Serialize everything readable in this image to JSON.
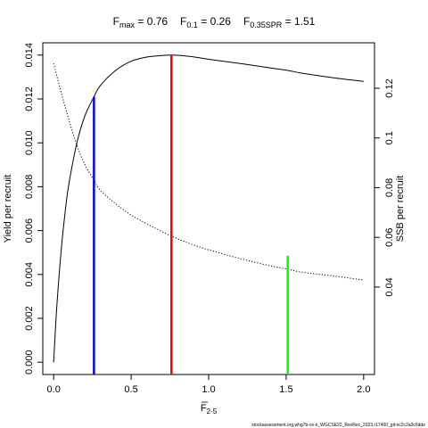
{
  "title": {
    "fmax": {
      "name": "F",
      "sub": "max",
      "text": " = 0.76"
    },
    "f01": {
      "name": "F",
      "sub": "0.1",
      "text": " = 0.26"
    },
    "f35": {
      "name": "F",
      "sub": "0.35SPR",
      "text": " = 1.51"
    }
  },
  "footer": "stockassessment.org,whg7b-ce-k_WGCSE22_RevRec_2023,r17400_git:ec2c2a0c6dde",
  "chart_data": {
    "type": "line",
    "xlabel": {
      "main": "F",
      "sub": "2-5"
    },
    "ylabel_left": "Yield per recruit",
    "ylabel_right": "SSB per recruit",
    "xlim": [
      -0.07,
      2.07
    ],
    "ylim_left": [
      -0.00056,
      0.01456
    ],
    "ylim_right": [
      0.0048,
      0.1383
    ],
    "x_ticks": [
      "0.0",
      "0.5",
      "1.0",
      "1.5",
      "2.0"
    ],
    "y_left_ticks": [
      "0.000",
      "0.002",
      "0.004",
      "0.006",
      "0.008",
      "0.010",
      "0.012",
      "0.014"
    ],
    "y_right_ticks": [
      "0.04",
      "0.06",
      "0.08",
      "0.1",
      "0.12"
    ],
    "series": [
      {
        "axis": "left",
        "style": "solid",
        "color": "#000000",
        "x": [
          0.0,
          0.02,
          0.05,
          0.08,
          0.1,
          0.15,
          0.2,
          0.26,
          0.3,
          0.4,
          0.5,
          0.6,
          0.7,
          0.76,
          0.8,
          0.9,
          1.0,
          1.2,
          1.4,
          1.51,
          1.6,
          1.8,
          2.0
        ],
        "values": [
          0.0,
          0.0025,
          0.0052,
          0.0072,
          0.0082,
          0.01,
          0.0112,
          0.0121,
          0.0126,
          0.0133,
          0.01372,
          0.01391,
          0.01398,
          0.014,
          0.01399,
          0.01392,
          0.01381,
          0.01362,
          0.01341,
          0.0133,
          0.01318,
          0.01297,
          0.0128
        ]
      },
      {
        "axis": "right",
        "style": "dotted",
        "color": "#000000",
        "x": [
          0.0,
          0.05,
          0.1,
          0.15,
          0.2,
          0.26,
          0.3,
          0.4,
          0.5,
          0.6,
          0.76,
          0.9,
          1.0,
          1.2,
          1.4,
          1.51,
          1.6,
          1.8,
          2.0
        ],
        "values": [
          0.13,
          0.118,
          0.107,
          0.097,
          0.0895,
          0.083,
          0.079,
          0.0735,
          0.069,
          0.0655,
          0.0605,
          0.057,
          0.055,
          0.0515,
          0.0485,
          0.0472,
          0.046,
          0.0445,
          0.0428
        ]
      }
    ],
    "reference_lines": [
      {
        "x": 0.26,
        "y_top": 0.0121,
        "color": "#0000ff"
      },
      {
        "x": 0.76,
        "y_top": 0.014,
        "color": "#ff0000"
      },
      {
        "x": 1.51,
        "y_top": 0.00485,
        "color": "#00ff00"
      }
    ]
  }
}
